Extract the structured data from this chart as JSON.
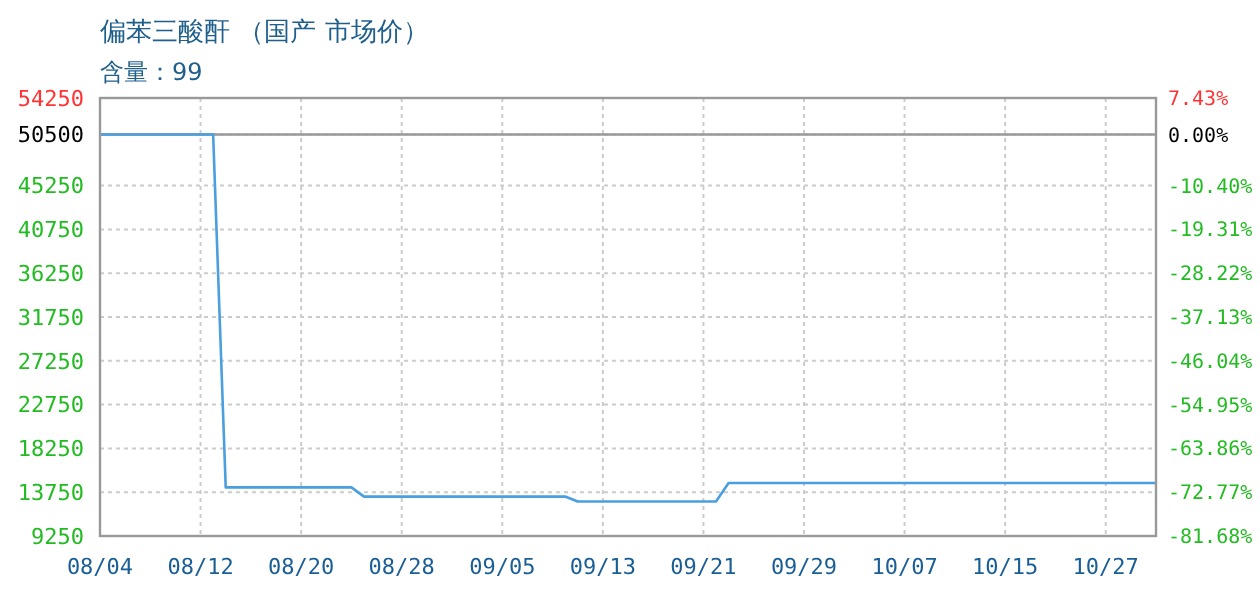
{
  "chart_data": {
    "type": "line",
    "title": "偏苯三酸酐 （国产 市场价）",
    "subtitle": "含量：99",
    "categories": [
      "08/04",
      null,
      null,
      null,
      null,
      null,
      null,
      null,
      "08/12",
      null,
      null,
      null,
      null,
      null,
      null,
      null,
      "08/20",
      null,
      null,
      null,
      null,
      null,
      null,
      null,
      "08/28",
      null,
      null,
      null,
      null,
      null,
      null,
      null,
      "09/05",
      null,
      null,
      null,
      null,
      null,
      null,
      null,
      "09/13",
      null,
      null,
      null,
      null,
      null,
      null,
      null,
      "09/21",
      null,
      null,
      null,
      null,
      null,
      null,
      null,
      "09/29",
      null,
      null,
      null,
      null,
      null,
      null,
      null,
      "10/07",
      null,
      null,
      null,
      null,
      null,
      null,
      null,
      "10/15",
      null,
      null,
      null,
      null,
      null,
      null,
      null,
      "10/27",
      null,
      null,
      null,
      null
    ],
    "series": [
      {
        "color": "#4a9fe0",
        "values": [
          50500,
          50500,
          50500,
          50500,
          50500,
          50500,
          50500,
          50500,
          50500,
          50500,
          14250,
          14250,
          14250,
          14250,
          14250,
          14250,
          14250,
          14250,
          14250,
          14250,
          14250,
          13300,
          13300,
          13300,
          13300,
          13300,
          13300,
          13300,
          13300,
          13300,
          13300,
          13300,
          13300,
          13300,
          13300,
          13300,
          13300,
          13300,
          12800,
          12800,
          12800,
          12800,
          12800,
          12800,
          12800,
          12800,
          12800,
          12800,
          12800,
          12800,
          14700,
          14700,
          14700,
          14700,
          14700,
          14700,
          14700,
          14700,
          14700,
          14700,
          14700,
          14700,
          14700,
          14700,
          14700,
          14700,
          14700,
          14700,
          14700,
          14700,
          14700,
          14700,
          14700,
          14700,
          14700,
          14700,
          14700,
          14700,
          14700,
          14700,
          14700,
          14700,
          14700,
          14700,
          14700
        ]
      }
    ],
    "ylim": [
      9250,
      54250
    ],
    "yticks": [
      9250,
      13750,
      18250,
      22750,
      27250,
      31750,
      36250,
      40750,
      45250,
      50500,
      54250
    ],
    "y2lim": [
      -81.68,
      7.43
    ],
    "y2ticks": [
      {
        "value": -81.68,
        "label": "-81.68%"
      },
      {
        "value": -72.77,
        "label": "-72.77%"
      },
      {
        "value": -63.86,
        "label": "-63.86%"
      },
      {
        "value": -54.95,
        "label": "-54.95%"
      },
      {
        "value": -46.04,
        "label": "-46.04%"
      },
      {
        "value": -37.13,
        "label": "-37.13%"
      },
      {
        "value": -28.22,
        "label": "-28.22%"
      },
      {
        "value": -19.31,
        "label": "-19.31%"
      },
      {
        "value": -10.4,
        "label": "-10.40%"
      },
      {
        "value": 0,
        "label": "0.00%"
      },
      {
        "value": 7.43,
        "label": "7.43%"
      }
    ],
    "ref_lines": [
      {
        "axis": "y",
        "value": 50500,
        "color": "#999999"
      }
    ],
    "grid": true,
    "marker": "none",
    "line_style": "solid"
  }
}
